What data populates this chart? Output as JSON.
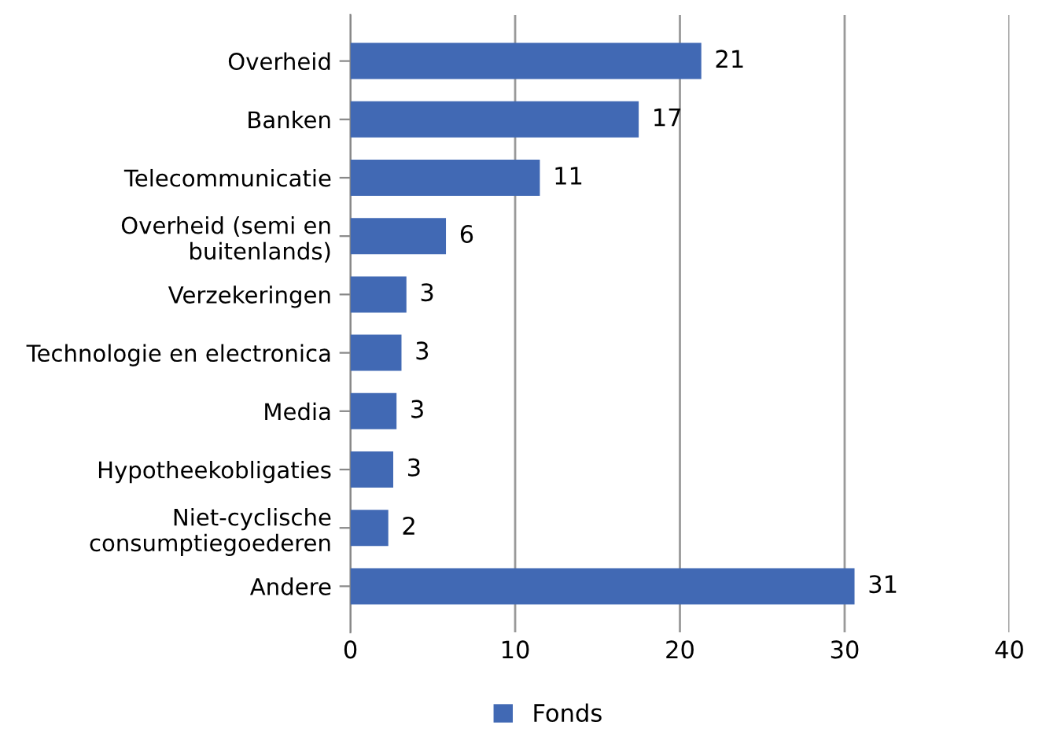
{
  "chart_data": {
    "type": "bar",
    "orientation": "horizontal",
    "categories": [
      "Overheid",
      "Banken",
      "Telecommunicatie",
      "Overheid (semi en\nbuitenlands)",
      "Verzekeringen",
      "Technologie en electronica",
      "Media",
      "Hypotheekobligaties",
      "Niet-cyclische\nconsumptiegoederen",
      "Andere"
    ],
    "series": [
      {
        "name": "Fonds",
        "color": "#4169b4",
        "values": [
          21.3,
          17.5,
          11.5,
          5.8,
          3.4,
          3.1,
          2.8,
          2.6,
          2.3,
          30.6
        ],
        "value_labels": [
          "21",
          "17",
          "11",
          "6",
          "3",
          "3",
          "3",
          "3",
          "2",
          "31"
        ]
      }
    ],
    "xlim": [
      0,
      40
    ],
    "xticks": [
      0,
      10,
      20,
      30,
      40
    ],
    "grid": "x",
    "legend": "bottom"
  }
}
